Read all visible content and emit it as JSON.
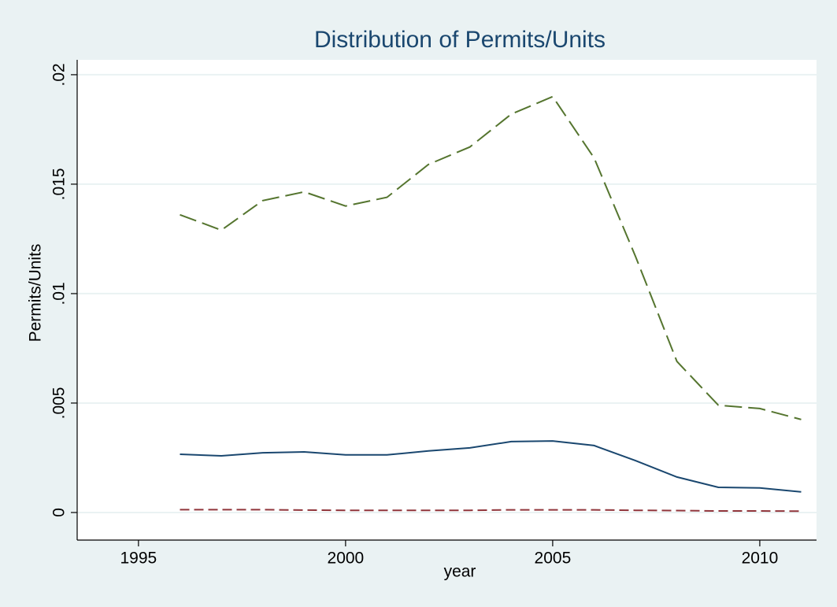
{
  "chart_data": {
    "type": "line",
    "title": "Distribution of Permits/Units",
    "x_label": "year",
    "y_label": "Permits/Units",
    "x": [
      1996,
      1997,
      1998,
      1999,
      2000,
      2001,
      2002,
      2003,
      2004,
      2005,
      2006,
      2007,
      2008,
      2009,
      2010,
      2011
    ],
    "series": [
      {
        "color": "#1a476f",
        "dash": "",
        "values": [
          0.00266,
          0.00259,
          0.00273,
          0.00277,
          0.00263,
          0.00263,
          0.00281,
          0.00295,
          0.00324,
          0.00327,
          0.00306,
          0.00237,
          0.00162,
          0.00115,
          0.00112,
          0.00094
        ]
      },
      {
        "color": "#90353b",
        "dash": "12 6",
        "values": [
          0.00013,
          0.00013,
          0.00013,
          0.00011,
          0.0001,
          0.0001,
          0.0001,
          0.0001,
          0.00012,
          0.00012,
          0.00012,
          0.0001,
          9e-05,
          7e-05,
          7e-05,
          6e-05
        ]
      },
      {
        "color": "#55752f",
        "dash": "22 8",
        "values": [
          0.0136,
          0.0129,
          0.01425,
          0.01465,
          0.014,
          0.0144,
          0.0159,
          0.0167,
          0.0182,
          0.019,
          0.0162,
          0.0117,
          0.0069,
          0.0049,
          0.00475,
          0.00425
        ]
      }
    ],
    "xlim": [
      1993.52,
      2011.37
    ],
    "xticks": [
      1995,
      2000,
      2005,
      2010
    ],
    "ylim": [
      -0.00126,
      0.02068
    ],
    "yticks": [
      0,
      {
        "value": 0.005,
        "label": ".005"
      },
      {
        "value": 0.01,
        "label": ".01"
      },
      {
        "value": 0.015,
        "label": ".015"
      },
      {
        "value": 0.02,
        "label": ".02"
      }
    ],
    "grid": true
  }
}
